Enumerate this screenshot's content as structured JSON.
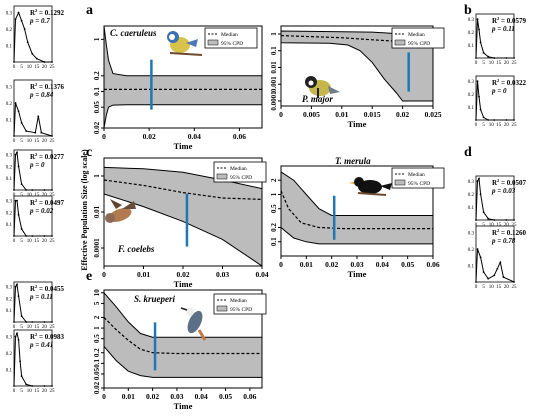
{
  "y_axis_title": "Effective Population Size (log scale)",
  "legend": {
    "median": "Median",
    "cpd": "95% CPD"
  },
  "small_panel_ticks": [
    "0",
    "5",
    "10",
    "15",
    "20",
    "25"
  ],
  "small_panel_yticks": [
    "0.3",
    "0.2",
    "0.1"
  ],
  "chart_data": [
    {
      "panel": "a",
      "type": "area",
      "species": "C. caeruleus",
      "xlabel": "Time",
      "x_ticks": [
        "0",
        "0.02",
        "0.04",
        "0.06"
      ],
      "xlim": [
        0,
        0.07
      ],
      "y_ticks": [
        "1",
        "0.2",
        "0.1",
        "0.05",
        "0.02"
      ],
      "ylim": [
        0.02,
        1.8
      ],
      "log_y": true,
      "blue_line_x": 0.021,
      "median": [
        [
          0,
          0.11
        ],
        [
          0.07,
          0.11
        ]
      ],
      "upper": [
        [
          0,
          1.8
        ],
        [
          0.001,
          0.8
        ],
        [
          0.002,
          0.4
        ],
        [
          0.004,
          0.22
        ],
        [
          0.01,
          0.2
        ],
        [
          0.07,
          0.2
        ]
      ],
      "lower": [
        [
          0,
          0.02
        ],
        [
          0.001,
          0.035
        ],
        [
          0.002,
          0.05
        ],
        [
          0.004,
          0.055
        ],
        [
          0.01,
          0.056
        ],
        [
          0.07,
          0.056
        ]
      ]
    },
    {
      "panel": "b-right",
      "type": "area",
      "species": "P. major",
      "xlabel": "Time",
      "x_ticks": [
        "0",
        "0.005",
        "0.01",
        "0.015",
        "0.02",
        "0.025"
      ],
      "xlim": [
        0,
        0.025
      ],
      "y_ticks": [
        "1",
        "0.1",
        "0.01",
        "0.001",
        "0.0001"
      ],
      "ylim": [
        5e-05,
        3
      ],
      "log_y": true,
      "blue_line_x": 0.021,
      "median": [
        [
          0,
          0.8
        ],
        [
          0.01,
          0.6
        ],
        [
          0.015,
          0.45
        ],
        [
          0.02,
          0.35
        ],
        [
          0.025,
          0.35
        ]
      ],
      "upper": [
        [
          0,
          1.5
        ],
        [
          0.015,
          1.3
        ],
        [
          0.02,
          1.0
        ],
        [
          0.025,
          0.9
        ]
      ],
      "lower": [
        [
          0,
          0.3
        ],
        [
          0.008,
          0.28
        ],
        [
          0.011,
          0.22
        ],
        [
          0.013,
          0.1
        ],
        [
          0.015,
          0.02
        ],
        [
          0.017,
          0.002
        ],
        [
          0.019,
          0.0003
        ],
        [
          0.02,
          0.0001
        ],
        [
          0.025,
          0.0001
        ]
      ]
    },
    {
      "panel": "c",
      "type": "area",
      "species": "F. coelebs",
      "xlabel": "Time",
      "x_ticks": [
        "0",
        "0.01",
        "0.02",
        "0.03",
        "0.04"
      ],
      "xlim": [
        0,
        0.04
      ],
      "y_ticks": [
        "1",
        "0.01",
        "0.0001"
      ],
      "ylim": [
        1e-05,
        10
      ],
      "log_y": true,
      "blue_line_x": 0.021,
      "median": [
        [
          0,
          0.6
        ],
        [
          0.01,
          0.3
        ],
        [
          0.02,
          0.12
        ],
        [
          0.03,
          0.06
        ],
        [
          0.04,
          0.05
        ]
      ],
      "upper": [
        [
          0,
          3
        ],
        [
          0.01,
          2.5
        ],
        [
          0.02,
          1.6
        ],
        [
          0.03,
          0.6
        ],
        [
          0.04,
          0.2
        ]
      ],
      "lower": [
        [
          0,
          0.1
        ],
        [
          0.01,
          0.02
        ],
        [
          0.02,
          0.003
        ],
        [
          0.03,
          0.0003
        ],
        [
          0.04,
          1e-05
        ]
      ]
    },
    {
      "panel": "d-left",
      "type": "area",
      "species": "T. merula",
      "xlabel": "Time",
      "x_ticks": [
        "0",
        "0.01",
        "0.02",
        "0.03",
        "0.04",
        "0.05",
        "0.06"
      ],
      "xlim": [
        0,
        0.06
      ],
      "y_ticks": [
        "2",
        "1",
        "0.5",
        "0.2",
        "0.1"
      ],
      "ylim": [
        0.05,
        4
      ],
      "log_y": true,
      "blue_line_x": 0.021,
      "median": [
        [
          0,
          1.2
        ],
        [
          0.003,
          0.5
        ],
        [
          0.008,
          0.25
        ],
        [
          0.015,
          0.2
        ],
        [
          0.025,
          0.19
        ],
        [
          0.06,
          0.19
        ]
      ],
      "upper": [
        [
          0,
          3
        ],
        [
          0.005,
          2
        ],
        [
          0.01,
          1
        ],
        [
          0.015,
          0.5
        ],
        [
          0.02,
          0.36
        ],
        [
          0.06,
          0.36
        ]
      ],
      "lower": [
        [
          0,
          0.2
        ],
        [
          0.005,
          0.12
        ],
        [
          0.01,
          0.1
        ],
        [
          0.015,
          0.09
        ],
        [
          0.06,
          0.09
        ]
      ]
    },
    {
      "panel": "e",
      "type": "area",
      "species": "S. krueperi",
      "xlabel": "Time",
      "x_ticks": [
        "0",
        "0.01",
        "0.02",
        "0.03",
        "0.04",
        "0.05",
        "0.06"
      ],
      "xlim": [
        0,
        0.065
      ],
      "y_ticks": [
        "10",
        "5",
        "2",
        "1",
        "0.5",
        "0.2",
        "0.1",
        "0.05",
        "0.02"
      ],
      "ylim": [
        0.02,
        12
      ],
      "log_y": true,
      "blue_line_x": 0.021,
      "median": [
        [
          0,
          2
        ],
        [
          0.005,
          0.9
        ],
        [
          0.01,
          0.45
        ],
        [
          0.015,
          0.25
        ],
        [
          0.02,
          0.2
        ],
        [
          0.03,
          0.19
        ],
        [
          0.065,
          0.19
        ]
      ],
      "upper": [
        [
          0,
          10
        ],
        [
          0.005,
          4
        ],
        [
          0.01,
          1.5
        ],
        [
          0.015,
          0.7
        ],
        [
          0.02,
          0.55
        ],
        [
          0.065,
          0.55
        ]
      ],
      "lower": [
        [
          0,
          0.3
        ],
        [
          0.005,
          0.12
        ],
        [
          0.01,
          0.06
        ],
        [
          0.015,
          0.045
        ],
        [
          0.02,
          0.04
        ],
        [
          0.065,
          0.04
        ]
      ]
    }
  ],
  "side_panels": [
    {
      "id": "L1",
      "r2": "R2 = 0.1292",
      "r2v": "0.1292",
      "p": "p = 0.7",
      "peak": [
        0,
        1,
        3,
        5,
        7,
        9,
        12,
        15,
        20,
        25
      ],
      "vals": [
        0.0,
        0.26,
        0.3,
        0.25,
        0.2,
        0.12,
        0.05,
        0.02,
        0.0,
        0.0
      ]
    },
    {
      "id": "L2",
      "r2": "R2 = 0.1376",
      "r2v": "0.1376",
      "p": "p = 0.84",
      "peak": [
        0,
        1,
        3,
        5,
        8,
        14,
        16,
        18,
        25
      ],
      "vals": [
        0.0,
        0.2,
        0.15,
        0.08,
        0.03,
        0.02,
        0.12,
        0.02,
        0.0
      ]
    },
    {
      "id": "L3",
      "r2": "R2 = 0.0277",
      "r2v": "0.0277",
      "p": "p = 0",
      "peak": [
        0,
        1,
        2,
        3,
        5,
        8,
        12,
        20,
        25
      ],
      "vals": [
        0.0,
        0.3,
        0.32,
        0.2,
        0.05,
        0.0,
        0.0,
        0.0,
        0.0
      ]
    },
    {
      "id": "L4",
      "r2": "R2 = 0.0497",
      "r2v": "0.0497",
      "p": "p = 0.02",
      "peak": [
        0,
        1,
        2,
        3,
        5,
        8,
        12,
        20,
        25
      ],
      "vals": [
        0.0,
        0.3,
        0.3,
        0.18,
        0.06,
        0.0,
        0.0,
        0.0,
        0.0
      ]
    },
    {
      "id": "L5",
      "r2": "R2 = 0.0455",
      "r2v": "0.0455",
      "p": "p = 0.11",
      "peak": [
        0,
        1,
        2,
        3,
        5,
        8,
        12,
        20,
        25
      ],
      "vals": [
        0.0,
        0.3,
        0.32,
        0.22,
        0.05,
        0.0,
        0.0,
        0.0,
        0.0
      ]
    },
    {
      "id": "L6",
      "r2": "R2 = 0.0983",
      "r2v": "0.0983",
      "p": "p = 0.41",
      "peak": [
        0,
        1,
        2,
        3,
        4,
        5,
        8,
        12,
        20,
        25
      ],
      "vals": [
        0.0,
        0.3,
        0.32,
        0.28,
        0.15,
        0.06,
        0.01,
        0.0,
        0.0,
        0.0
      ]
    },
    {
      "id": "R1",
      "r2": "R2 = 0.0579",
      "r2v": "0.0579",
      "p": "p = 0.11",
      "peak": [
        0,
        1,
        2,
        3,
        5,
        8,
        12,
        20,
        25
      ],
      "vals": [
        0.0,
        0.3,
        0.22,
        0.12,
        0.04,
        0.01,
        0.0,
        0.0,
        0.0
      ]
    },
    {
      "id": "R2",
      "r2": "R2 = 0.0322",
      "r2v": "0.0322",
      "p": "p = 0",
      "peak": [
        0,
        1,
        2,
        3,
        5,
        8,
        12,
        20,
        25
      ],
      "vals": [
        0.0,
        0.3,
        0.18,
        0.08,
        0.02,
        0.0,
        0.0,
        0.0,
        0.0
      ]
    },
    {
      "id": "R3",
      "r2": "R2 = 0.0507",
      "r2v": "0.0507",
      "p": "p = 0.03",
      "peak": [
        0,
        1,
        2,
        3,
        5,
        8,
        12,
        20,
        25
      ],
      "vals": [
        0.0,
        0.3,
        0.32,
        0.2,
        0.06,
        0.01,
        0.0,
        0.0,
        0.0
      ]
    },
    {
      "id": "R4",
      "r2": "R2 = 0.1260",
      "r2v": "0.1260",
      "p": "p = 0.78",
      "peak": [
        0,
        1,
        3,
        5,
        8,
        12,
        14,
        16,
        18,
        25
      ],
      "vals": [
        0.0,
        0.2,
        0.15,
        0.06,
        0.02,
        0.04,
        0.08,
        0.12,
        0.03,
        0.0
      ]
    }
  ],
  "panel_letters": {
    "a": "a",
    "b": "b",
    "c": "c",
    "d": "d",
    "e": "e"
  }
}
